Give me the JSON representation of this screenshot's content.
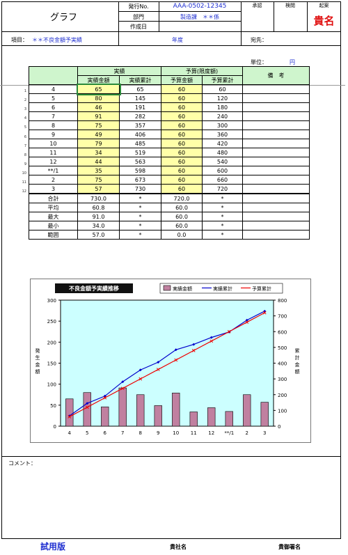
{
  "header": {
    "title": "グラフ",
    "issue_no_label": "発行No.",
    "issue_no_value": "AAA-0502-12345",
    "dept_label": "部門",
    "dept_value": "製造課　＊＊係",
    "created_label": "作成日",
    "approval_labels": [
      "承認",
      "検閲",
      "起案"
    ],
    "stamp": "貴名"
  },
  "info_bar": {
    "item_label": "項目：",
    "item_value": "＊＊不良金額予実績",
    "year_label": "年度",
    "dest_label": "宛先："
  },
  "unit": {
    "label": "単位：",
    "value": "円"
  },
  "table": {
    "group_headers": {
      "actual": "実績",
      "budget": "予算(限度額)",
      "notes": "備　考"
    },
    "col_headers": [
      "実績金額",
      "実績累計",
      "予算金額",
      "予算累計"
    ],
    "row_numbers": [
      "1",
      "2",
      "3",
      "4",
      "5",
      "6",
      "7",
      "8",
      "9",
      "10",
      "11",
      "12"
    ],
    "rows": [
      {
        "month": "4",
        "actual": "65",
        "actual_cum": "65",
        "budget": "60",
        "budget_cum": "60"
      },
      {
        "month": "5",
        "actual": "80",
        "actual_cum": "145",
        "budget": "60",
        "budget_cum": "120"
      },
      {
        "month": "6",
        "actual": "46",
        "actual_cum": "191",
        "budget": "60",
        "budget_cum": "180"
      },
      {
        "month": "7",
        "actual": "91",
        "actual_cum": "282",
        "budget": "60",
        "budget_cum": "240"
      },
      {
        "month": "8",
        "actual": "75",
        "actual_cum": "357",
        "budget": "60",
        "budget_cum": "300"
      },
      {
        "month": "9",
        "actual": "49",
        "actual_cum": "406",
        "budget": "60",
        "budget_cum": "360"
      },
      {
        "month": "10",
        "actual": "79",
        "actual_cum": "485",
        "budget": "60",
        "budget_cum": "420"
      },
      {
        "month": "11",
        "actual": "34",
        "actual_cum": "519",
        "budget": "60",
        "budget_cum": "480"
      },
      {
        "month": "12",
        "actual": "44",
        "actual_cum": "563",
        "budget": "60",
        "budget_cum": "540"
      },
      {
        "month": "**/1",
        "actual": "35",
        "actual_cum": "598",
        "budget": "60",
        "budget_cum": "600"
      },
      {
        "month": "2",
        "actual": "75",
        "actual_cum": "673",
        "budget": "60",
        "budget_cum": "660"
      },
      {
        "month": "3",
        "actual": "57",
        "actual_cum": "730",
        "budget": "60",
        "budget_cum": "720"
      }
    ],
    "summary": [
      {
        "label": "合計",
        "actual": "730.0",
        "actual_cum": "*",
        "budget": "720.0",
        "budget_cum": "*"
      },
      {
        "label": "平均",
        "actual": "60.8",
        "actual_cum": "*",
        "budget": "60.0",
        "budget_cum": "*"
      },
      {
        "label": "最大",
        "actual": "91.0",
        "actual_cum": "*",
        "budget": "60.0",
        "budget_cum": "*"
      },
      {
        "label": "最小",
        "actual": "34.0",
        "actual_cum": "*",
        "budget": "60.0",
        "budget_cum": "*"
      },
      {
        "label": "範囲",
        "actual": "57.0",
        "actual_cum": "*",
        "budget": "0.0",
        "budget_cum": "*"
      }
    ]
  },
  "chart_data": {
    "type": "bar",
    "title": "不良金額予実績推移",
    "categories": [
      "4",
      "5",
      "6",
      "7",
      "8",
      "9",
      "10",
      "11",
      "12",
      "**/1",
      "2",
      "3"
    ],
    "ylabel": "発生金額",
    "y2label": "累計金額",
    "ylim": [
      0,
      300
    ],
    "y2lim": [
      0,
      800
    ],
    "yticks": [
      "0",
      "50",
      "100",
      "150",
      "200",
      "250",
      "300"
    ],
    "y2ticks": [
      "0",
      "100",
      "200",
      "300",
      "400",
      "500",
      "600",
      "700",
      "800"
    ],
    "legend_position": "top",
    "background": "#ccffff",
    "series": [
      {
        "name": "実績金額",
        "type": "bar",
        "axis": "left",
        "color": "#c080a0",
        "values": [
          65,
          80,
          46,
          91,
          75,
          49,
          79,
          34,
          44,
          35,
          75,
          57
        ]
      },
      {
        "name": "実績累計",
        "type": "line",
        "axis": "right",
        "color": "#0000cc",
        "values": [
          65,
          145,
          191,
          282,
          357,
          406,
          485,
          519,
          563,
          598,
          673,
          730
        ]
      },
      {
        "name": "予算累計",
        "type": "line",
        "axis": "right",
        "color": "#ee0000",
        "values": [
          60,
          120,
          180,
          240,
          300,
          360,
          420,
          480,
          540,
          600,
          660,
          720
        ]
      }
    ]
  },
  "comment": {
    "label": "コメント："
  },
  "footer": {
    "trial": "試用版",
    "company": "貴社名",
    "signature": "貴御署名"
  }
}
